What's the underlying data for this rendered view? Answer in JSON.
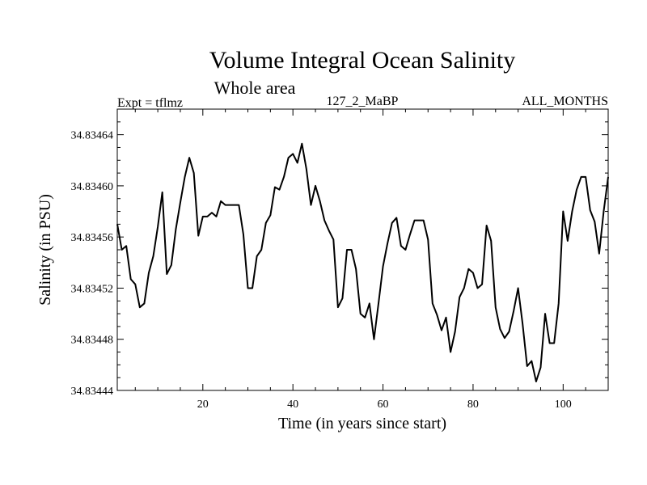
{
  "chart_data": {
    "type": "line",
    "title": "Volume Integral Ocean Salinity",
    "subtitle": "Whole area",
    "annotations": {
      "left": "Expt = tflmz",
      "center": "127_2_MaBP",
      "right": "ALL_MONTHS"
    },
    "xlabel": "Time (in years since start)",
    "ylabel": "Salinity (in PSU)",
    "xlim": [
      1,
      110
    ],
    "ylim": [
      34.83444,
      34.83466
    ],
    "xticks": [
      20,
      40,
      60,
      80,
      100
    ],
    "yticks": [
      34.83444,
      34.83448,
      34.83452,
      34.83456,
      34.8346,
      34.83464
    ],
    "ytick_labels": [
      "34.83444",
      "34.83448",
      "34.83452",
      "34.83456",
      "34.83460",
      "34.83464"
    ],
    "grid": false,
    "series": [
      {
        "name": "Salinity",
        "x": [
          1,
          2,
          3,
          4,
          5,
          6,
          7,
          8,
          9,
          10,
          11,
          12,
          13,
          14,
          15,
          16,
          17,
          18,
          19,
          20,
          21,
          22,
          23,
          24,
          25,
          26,
          27,
          28,
          29,
          30,
          31,
          32,
          33,
          34,
          35,
          36,
          37,
          38,
          39,
          40,
          41,
          42,
          43,
          44,
          45,
          46,
          47,
          48,
          49,
          50,
          51,
          52,
          53,
          54,
          55,
          56,
          57,
          58,
          59,
          60,
          61,
          62,
          63,
          64,
          65,
          66,
          67,
          68,
          69,
          70,
          71,
          72,
          73,
          74,
          75,
          76,
          77,
          78,
          79,
          80,
          81,
          82,
          83,
          84,
          85,
          86,
          87,
          88,
          89,
          90,
          91,
          92,
          93,
          94,
          95,
          96,
          97,
          98,
          99,
          100,
          101,
          102,
          103,
          104,
          105,
          106,
          107,
          108,
          109,
          110
        ],
        "values": [
          34.83457,
          34.83455,
          34.834553,
          34.834527,
          34.834523,
          34.834505,
          34.834508,
          34.834532,
          34.834545,
          34.834568,
          34.834595,
          34.834531,
          34.834538,
          34.834566,
          34.834587,
          34.834607,
          34.834622,
          34.83461,
          34.834561,
          34.834576,
          34.834576,
          34.834579,
          34.834576,
          34.834588,
          34.834585,
          34.834585,
          34.834585,
          34.834585,
          34.834562,
          34.83452,
          34.83452,
          34.834545,
          34.83455,
          34.834571,
          34.834577,
          34.834599,
          34.834597,
          34.834607,
          34.834622,
          34.834625,
          34.834618,
          34.834633,
          34.834613,
          34.834585,
          34.8346,
          34.834588,
          34.834573,
          34.834565,
          34.834558,
          34.834505,
          34.834512,
          34.83455,
          34.83455,
          34.834535,
          34.8345,
          34.834497,
          34.834508,
          34.83448,
          34.834508,
          34.834537,
          34.834555,
          34.834571,
          34.834575,
          34.834553,
          34.83455,
          34.834562,
          34.834573,
          34.834573,
          34.834573,
          34.834558,
          34.834508,
          34.834499,
          34.834487,
          34.834497,
          34.83447,
          34.834486,
          34.834513,
          34.83452,
          34.834535,
          34.834532,
          34.83452,
          34.834523,
          34.834569,
          34.834557,
          34.834505,
          34.834488,
          34.834481,
          34.834486,
          34.834502,
          34.83452,
          34.834492,
          34.834459,
          34.834463,
          34.834447,
          34.834458,
          34.8345,
          34.834477,
          34.834477,
          34.834508,
          34.83458,
          34.834557,
          34.83458,
          34.834597,
          34.834607,
          34.834607,
          34.834581,
          34.834572,
          34.834547,
          34.83458,
          34.834607
        ]
      }
    ]
  }
}
